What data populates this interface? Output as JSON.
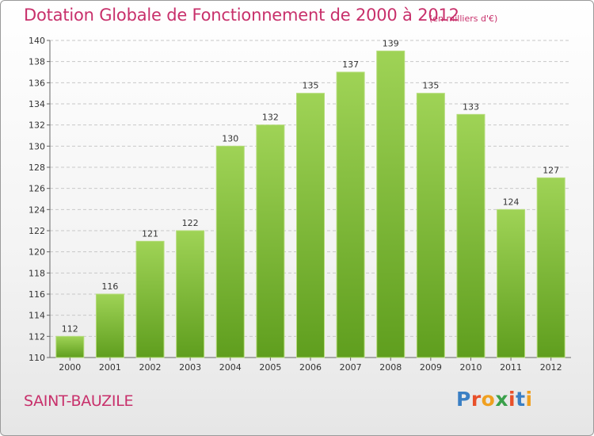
{
  "header": {
    "title": "Dotation Globale de Fonctionnement de 2000 à 2012",
    "unit": "(en milliers d'€)"
  },
  "footer": {
    "commune": "SAINT-BAUZILE",
    "logo_text": "Proxiti",
    "logo_colors": [
      "#3a7fc4",
      "#e8502a",
      "#f0a020",
      "#3aa04a",
      "#e8502a",
      "#3a7fc4",
      "#f0a020"
    ]
  },
  "chart_data": {
    "type": "bar",
    "title": "Dotation Globale de Fonctionnement de 2000 à 2012",
    "categories": [
      "2000",
      "2001",
      "2002",
      "2003",
      "2004",
      "2005",
      "2006",
      "2007",
      "2008",
      "2009",
      "2010",
      "2011",
      "2012"
    ],
    "values": [
      112,
      116,
      121,
      122,
      130,
      132,
      135,
      137,
      139,
      135,
      133,
      124,
      127
    ],
    "ylim": [
      110,
      140
    ],
    "yticks": [
      110,
      112,
      114,
      116,
      118,
      120,
      122,
      124,
      126,
      128,
      130,
      132,
      134,
      136,
      138,
      140
    ],
    "grid": "horizontal dashed",
    "bar_color": "#8cc63f",
    "bar_color_dark": "#6aa826"
  }
}
